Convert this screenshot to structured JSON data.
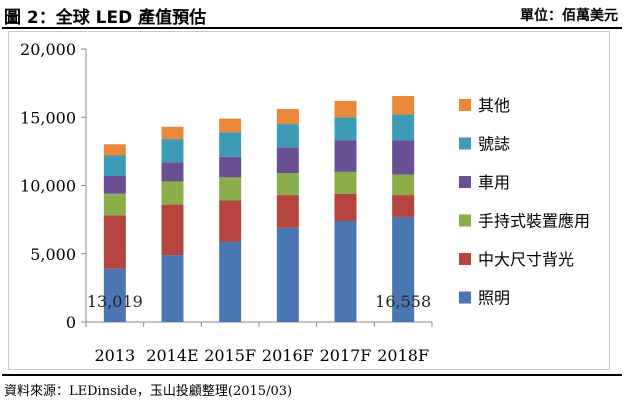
{
  "header": {
    "title": "圖 2：全球 LED 產值預估",
    "unit": "單位：佰萬美元"
  },
  "footer": {
    "source": "資料來源：LEDinside，玉山投顧整理(2015/03)"
  },
  "colors": {
    "照明": "#4a76b2",
    "中大尺寸背光": "#b5443f",
    "手持式裝置應用": "#8aae4a",
    "車用": "#6a4f93",
    "號誌": "#3d9bb6",
    "其他": "#e9873a"
  },
  "chart_data": {
    "type": "bar",
    "stacked": true,
    "categories": [
      "2013",
      "2014E",
      "2015F",
      "2016F",
      "2017F",
      "2018F"
    ],
    "ylim": [
      0,
      20000
    ],
    "yticks": [
      "0",
      "5,000",
      "10,000",
      "15,000",
      "20,000"
    ],
    "ytick_values": [
      0,
      5000,
      10000,
      15000,
      20000
    ],
    "grid": false,
    "legend_position": "right",
    "series": [
      {
        "name": "照明",
        "values": [
          3900,
          4900,
          5900,
          6900,
          7400,
          7700
        ]
      },
      {
        "name": "中大尺寸背光",
        "values": [
          3900,
          3700,
          3000,
          2400,
          2000,
          1600
        ]
      },
      {
        "name": "手持式裝置應用",
        "values": [
          1600,
          1700,
          1700,
          1600,
          1600,
          1500
        ]
      },
      {
        "name": "車用",
        "values": [
          1300,
          1400,
          1500,
          1900,
          2300,
          2500
        ]
      },
      {
        "name": "號誌",
        "values": [
          1500,
          1700,
          1800,
          1700,
          1700,
          1900
        ]
      },
      {
        "name": "其他",
        "values": [
          819,
          900,
          1000,
          1100,
          1200,
          1358
        ]
      }
    ],
    "data_labels": [
      {
        "category": "2013",
        "text": "13,019"
      },
      {
        "category": "2018F",
        "text": "16,558"
      }
    ]
  }
}
